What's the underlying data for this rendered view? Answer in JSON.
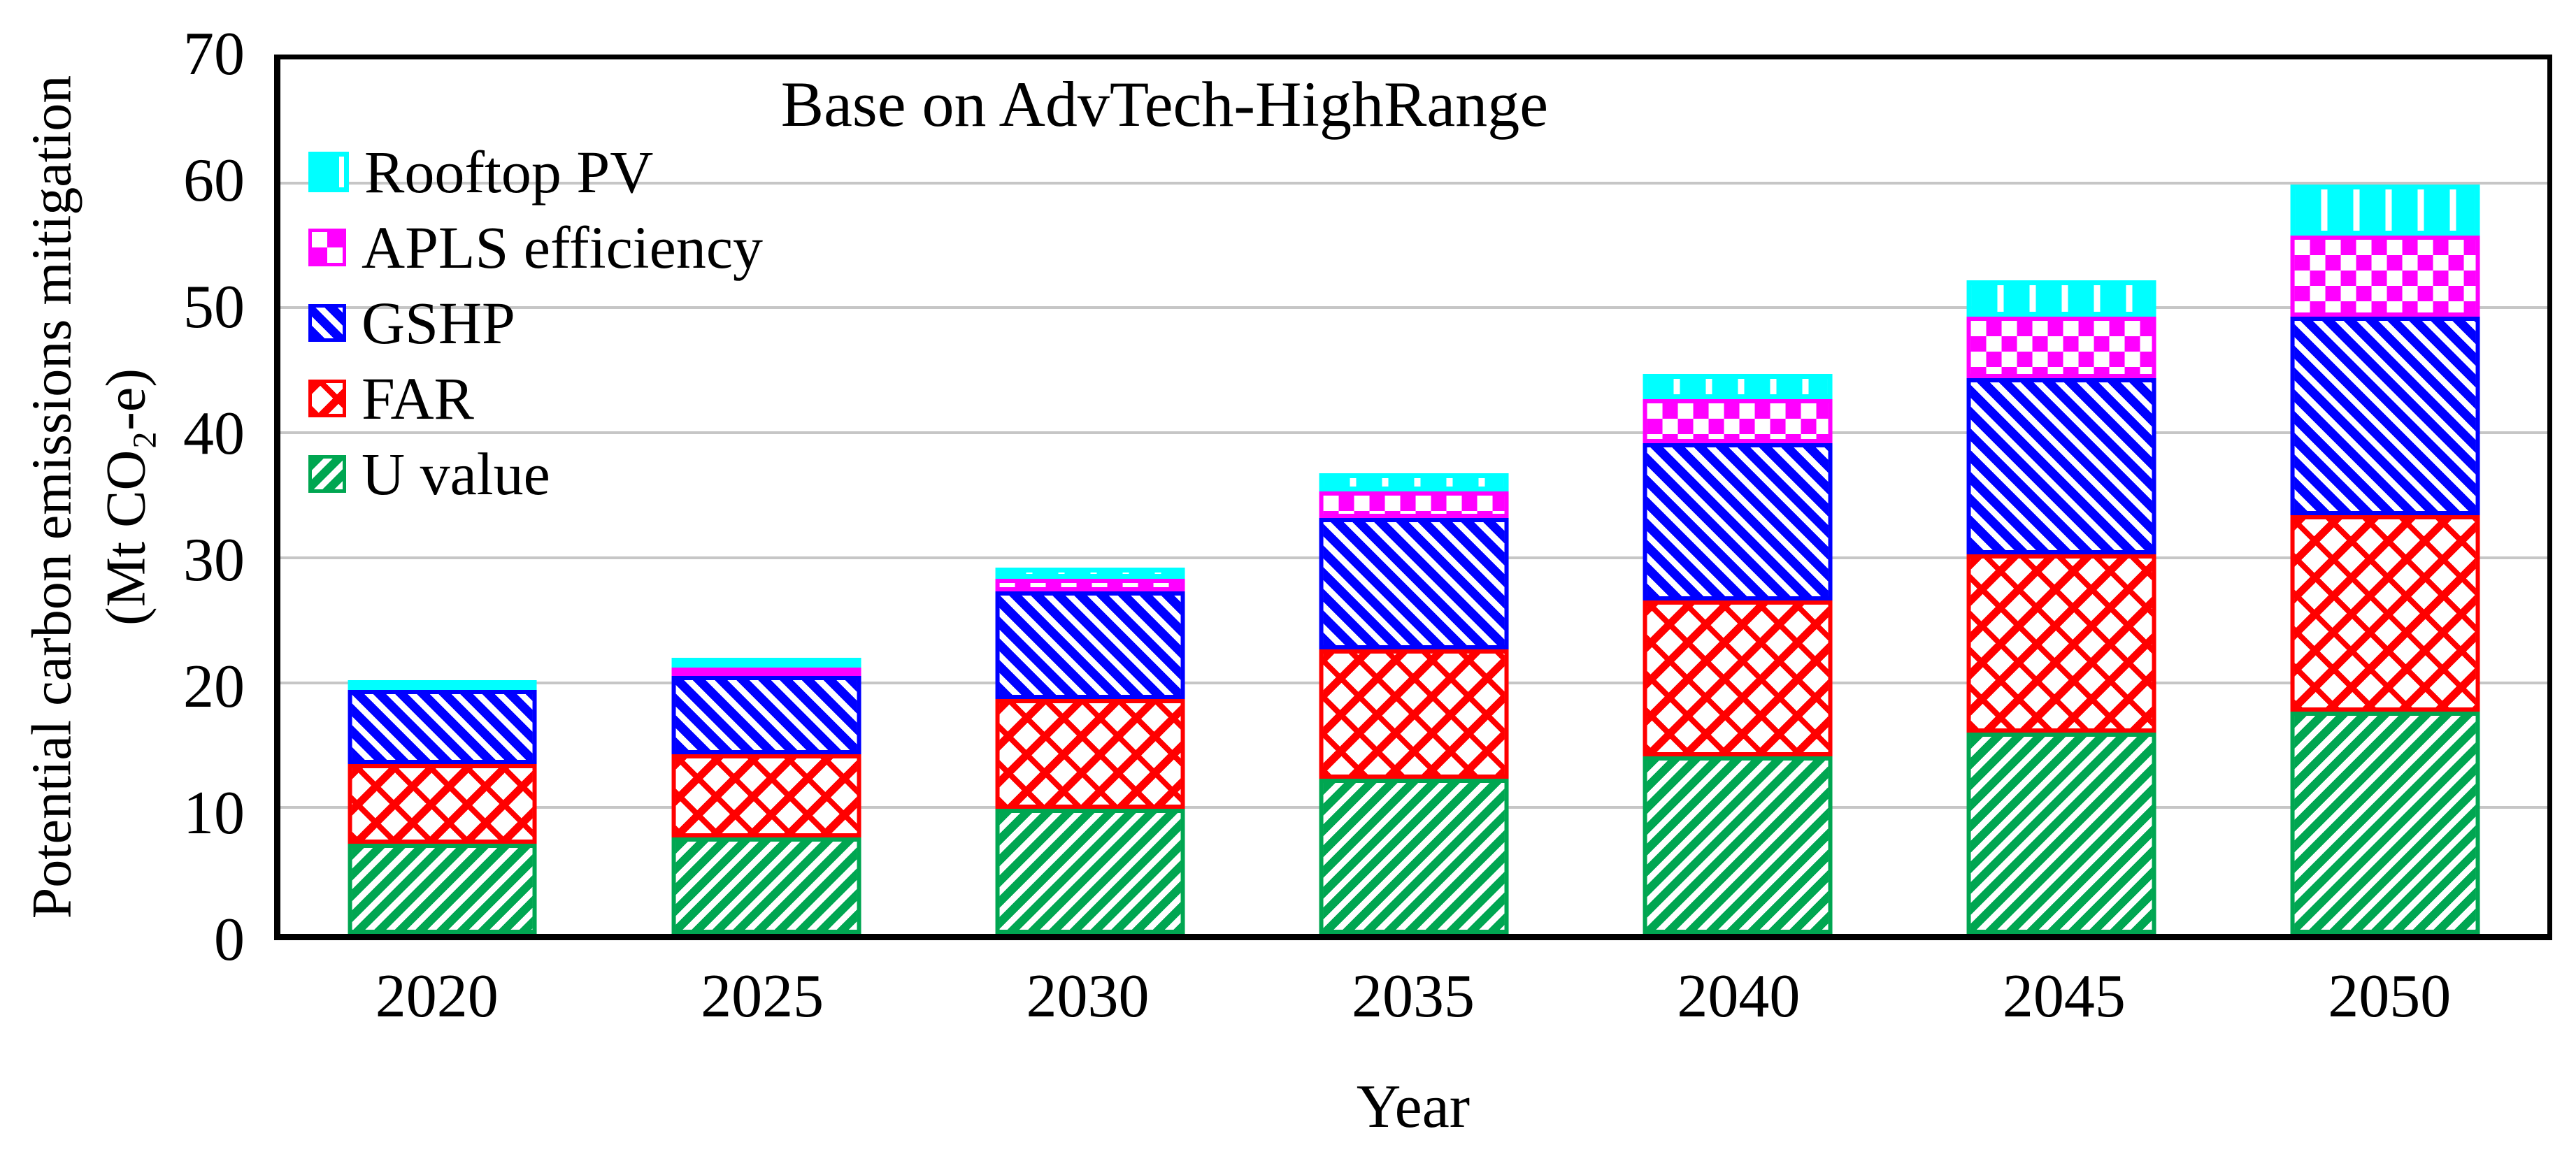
{
  "figure": {
    "background": "#ffffff",
    "frame_color": "#000000",
    "gridline_color": "#c6c6c6"
  },
  "title": "Base on AdvTech-HighRange",
  "axes": {
    "y_label_line1": "Potential carbon emissions mitigation",
    "y_label_line2": "(Mt CO₂-e)",
    "x_label": "Year"
  },
  "legend": {
    "items": [
      {
        "label": "Rooftop PV",
        "pattern": "vertical-bars",
        "color": "#00FFFF"
      },
      {
        "label": "APLS efficiency",
        "pattern": "checker",
        "color": "#FF00FF"
      },
      {
        "label": "GSHP",
        "pattern": "diagonal-down",
        "color": "#0000FF"
      },
      {
        "label": "FAR",
        "pattern": "diagonal-crosshatch",
        "color": "#FF0000"
      },
      {
        "label": "U value",
        "pattern": "diagonal-up",
        "color": "#00A651"
      }
    ]
  },
  "chart_data": {
    "type": "bar",
    "stacked": true,
    "title": "Base on AdvTech-HighRange",
    "xlabel": "Year",
    "ylabel": "Potential carbon emissions mitigation (Mt CO₂-e)",
    "categories": [
      "2020",
      "2025",
      "2030",
      "2035",
      "2040",
      "2045",
      "2050"
    ],
    "series": [
      {
        "name": "U value",
        "color": "#00A651",
        "pattern": "diagonal-up",
        "values": [
          7.3,
          7.8,
          10.0,
          12.4,
          14.2,
          16.1,
          17.8
        ]
      },
      {
        "name": "FAR",
        "color": "#FF0000",
        "pattern": "diagonal-crosshatch",
        "values": [
          6.4,
          6.7,
          8.8,
          10.4,
          12.5,
          14.3,
          15.7
        ]
      },
      {
        "name": "GSHP",
        "color": "#0000FF",
        "pattern": "diagonal-down",
        "values": [
          6.0,
          6.3,
          8.6,
          10.5,
          12.6,
          14.1,
          15.9
        ]
      },
      {
        "name": "APLS efficiency",
        "color": "#FF00FF",
        "pattern": "checker",
        "values": [
          0.0,
          0.5,
          1.0,
          2.1,
          3.5,
          4.9,
          6.5
        ]
      },
      {
        "name": "Rooftop PV",
        "color": "#00FFFF",
        "pattern": "vertical-bars",
        "values": [
          0.6,
          0.8,
          0.9,
          1.5,
          2.0,
          2.9,
          4.1
        ]
      }
    ],
    "totals": [
      20.3,
      22.1,
      29.3,
      36.9,
      44.8,
      52.3,
      60.0
    ],
    "ylim": [
      0,
      70
    ],
    "yticks": [
      0,
      10,
      20,
      30,
      40,
      50,
      60,
      70
    ],
    "grid": true,
    "legend_position": "inside-top-left"
  }
}
